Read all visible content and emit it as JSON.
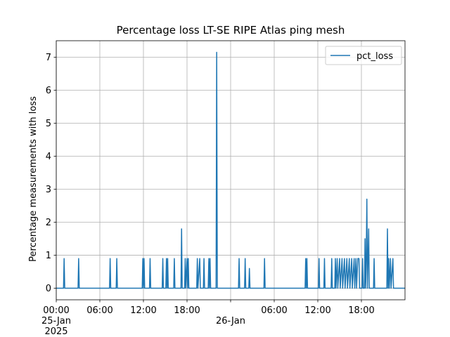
{
  "chart_data": {
    "type": "line",
    "title": "Percentage loss LT-SE RIPE Atlas ping mesh",
    "xlabel": "",
    "ylabel": "Percentage measurements with loss",
    "xlim": [
      "2025-01-25T00:00",
      "2025-01-27T00:00"
    ],
    "ylim": [
      -0.35,
      7.5
    ],
    "grid": true,
    "legend_position": "top-right",
    "line_color": "#1f77b4",
    "x_ticks": [
      {
        "at": "2025-01-25T00:00",
        "lines": [
          "00:00",
          "25-Jan",
          "2025"
        ]
      },
      {
        "at": "2025-01-25T06:00",
        "lines": [
          "06:00"
        ]
      },
      {
        "at": "2025-01-25T12:00",
        "lines": [
          "12:00"
        ]
      },
      {
        "at": "2025-01-25T18:00",
        "lines": [
          "18:00"
        ]
      },
      {
        "at": "2025-01-26T00:00",
        "lines": [
          "",
          "26-Jan"
        ]
      },
      {
        "at": "2025-01-26T06:00",
        "lines": [
          "06:00"
        ]
      },
      {
        "at": "2025-01-26T12:00",
        "lines": [
          "12:00"
        ]
      },
      {
        "at": "2025-01-26T18:00",
        "lines": [
          "18:00"
        ]
      }
    ],
    "y_ticks": [
      0,
      1,
      2,
      3,
      4,
      5,
      6,
      7
    ],
    "series": [
      {
        "name": "pct_loss",
        "points": [
          [
            "2025-01-25T00:00",
            0
          ],
          [
            "2025-01-25T01:00",
            0
          ],
          [
            "2025-01-25T01:05",
            0.9
          ],
          [
            "2025-01-25T01:10",
            0
          ],
          [
            "2025-01-25T03:00",
            0
          ],
          [
            "2025-01-25T03:05",
            0.9
          ],
          [
            "2025-01-25T03:10",
            0
          ],
          [
            "2025-01-25T07:20",
            0
          ],
          [
            "2025-01-25T07:25",
            0.9
          ],
          [
            "2025-01-25T07:30",
            0
          ],
          [
            "2025-01-25T08:15",
            0
          ],
          [
            "2025-01-25T08:20",
            0.9
          ],
          [
            "2025-01-25T08:25",
            0
          ],
          [
            "2025-01-25T11:50",
            0
          ],
          [
            "2025-01-25T11:55",
            0.9
          ],
          [
            "2025-01-25T12:00",
            0
          ],
          [
            "2025-01-25T12:05",
            0.9
          ],
          [
            "2025-01-25T12:10",
            0
          ],
          [
            "2025-01-25T12:50",
            0
          ],
          [
            "2025-01-25T12:55",
            0.9
          ],
          [
            "2025-01-25T13:00",
            0
          ],
          [
            "2025-01-25T14:35",
            0
          ],
          [
            "2025-01-25T14:40",
            0.9
          ],
          [
            "2025-01-25T14:45",
            0
          ],
          [
            "2025-01-25T15:05",
            0
          ],
          [
            "2025-01-25T15:10",
            0.9
          ],
          [
            "2025-01-25T15:15",
            0
          ],
          [
            "2025-01-25T15:20",
            0.9
          ],
          [
            "2025-01-25T15:25",
            0
          ],
          [
            "2025-01-25T16:10",
            0
          ],
          [
            "2025-01-25T16:15",
            0.9
          ],
          [
            "2025-01-25T16:20",
            0
          ],
          [
            "2025-01-25T17:10",
            0
          ],
          [
            "2025-01-25T17:15",
            1.8
          ],
          [
            "2025-01-25T17:20",
            0
          ],
          [
            "2025-01-25T17:40",
            0
          ],
          [
            "2025-01-25T17:45",
            0.9
          ],
          [
            "2025-01-25T17:50",
            0
          ],
          [
            "2025-01-25T18:00",
            0.9
          ],
          [
            "2025-01-25T18:05",
            0
          ],
          [
            "2025-01-25T18:10",
            0.9
          ],
          [
            "2025-01-25T18:15",
            0
          ],
          [
            "2025-01-25T19:20",
            0
          ],
          [
            "2025-01-25T19:25",
            0.9
          ],
          [
            "2025-01-25T19:30",
            0
          ],
          [
            "2025-01-25T19:45",
            0.9
          ],
          [
            "2025-01-25T19:50",
            0
          ],
          [
            "2025-01-25T20:15",
            0
          ],
          [
            "2025-01-25T20:20",
            0.9
          ],
          [
            "2025-01-25T20:25",
            0
          ],
          [
            "2025-01-25T20:55",
            0
          ],
          [
            "2025-01-25T21:00",
            0.9
          ],
          [
            "2025-01-25T21:05",
            0
          ],
          [
            "2025-01-25T21:10",
            0.9
          ],
          [
            "2025-01-25T21:15",
            0
          ],
          [
            "2025-01-25T22:00",
            0
          ],
          [
            "2025-01-25T22:05",
            7.15
          ],
          [
            "2025-01-25T22:10",
            0
          ],
          [
            "2025-01-26T01:05",
            0
          ],
          [
            "2025-01-26T01:10",
            0.9
          ],
          [
            "2025-01-26T01:15",
            0
          ],
          [
            "2025-01-26T01:55",
            0
          ],
          [
            "2025-01-26T02:00",
            0.9
          ],
          [
            "2025-01-26T02:05",
            0
          ],
          [
            "2025-01-26T02:30",
            0
          ],
          [
            "2025-01-26T02:35",
            0.6
          ],
          [
            "2025-01-26T02:40",
            0
          ],
          [
            "2025-01-26T04:35",
            0
          ],
          [
            "2025-01-26T04:40",
            0.9
          ],
          [
            "2025-01-26T04:45",
            0
          ],
          [
            "2025-01-26T10:15",
            0
          ],
          [
            "2025-01-26T10:20",
            0.9
          ],
          [
            "2025-01-26T10:25",
            0
          ],
          [
            "2025-01-26T10:30",
            0.9
          ],
          [
            "2025-01-26T10:35",
            0
          ],
          [
            "2025-01-26T12:05",
            0
          ],
          [
            "2025-01-26T12:10",
            0.9
          ],
          [
            "2025-01-26T12:15",
            0
          ],
          [
            "2025-01-26T12:50",
            0
          ],
          [
            "2025-01-26T12:55",
            0.9
          ],
          [
            "2025-01-26T13:00",
            0
          ],
          [
            "2025-01-26T13:50",
            0
          ],
          [
            "2025-01-26T13:55",
            0.9
          ],
          [
            "2025-01-26T14:00",
            0
          ],
          [
            "2025-01-26T14:20",
            0
          ],
          [
            "2025-01-26T14:25",
            0.9
          ],
          [
            "2025-01-26T14:30",
            0
          ],
          [
            "2025-01-26T14:40",
            0.9
          ],
          [
            "2025-01-26T14:45",
            0
          ],
          [
            "2025-01-26T15:00",
            0.9
          ],
          [
            "2025-01-26T15:05",
            0
          ],
          [
            "2025-01-26T15:20",
            0.9
          ],
          [
            "2025-01-26T15:25",
            0
          ],
          [
            "2025-01-26T15:40",
            0.9
          ],
          [
            "2025-01-26T15:45",
            0
          ],
          [
            "2025-01-26T16:00",
            0.9
          ],
          [
            "2025-01-26T16:05",
            0
          ],
          [
            "2025-01-26T16:20",
            0.9
          ],
          [
            "2025-01-26T16:25",
            0
          ],
          [
            "2025-01-26T16:40",
            0.9
          ],
          [
            "2025-01-26T16:45",
            0
          ],
          [
            "2025-01-26T17:00",
            0.9
          ],
          [
            "2025-01-26T17:05",
            0
          ],
          [
            "2025-01-26T17:15",
            0.9
          ],
          [
            "2025-01-26T17:20",
            0
          ],
          [
            "2025-01-26T17:30",
            0.9
          ],
          [
            "2025-01-26T17:40",
            0.9
          ],
          [
            "2025-01-26T17:45",
            0
          ],
          [
            "2025-01-26T18:05",
            0
          ],
          [
            "2025-01-26T18:10",
            0.9
          ],
          [
            "2025-01-26T18:15",
            0
          ],
          [
            "2025-01-26T18:25",
            0
          ],
          [
            "2025-01-26T18:30",
            1.5
          ],
          [
            "2025-01-26T18:35",
            0
          ],
          [
            "2025-01-26T18:40",
            0.9
          ],
          [
            "2025-01-26T18:45",
            2.7
          ],
          [
            "2025-01-26T18:50",
            0
          ],
          [
            "2025-01-26T19:00",
            1.8
          ],
          [
            "2025-01-26T19:05",
            0
          ],
          [
            "2025-01-26T19:40",
            0
          ],
          [
            "2025-01-26T19:45",
            0.9
          ],
          [
            "2025-01-26T19:50",
            0
          ],
          [
            "2025-01-26T21:30",
            0
          ],
          [
            "2025-01-26T21:35",
            1.8
          ],
          [
            "2025-01-26T21:40",
            0
          ],
          [
            "2025-01-26T21:45",
            0.9
          ],
          [
            "2025-01-26T21:50",
            0
          ],
          [
            "2025-01-26T22:00",
            0.9
          ],
          [
            "2025-01-26T22:05",
            0
          ],
          [
            "2025-01-26T22:20",
            0.9
          ],
          [
            "2025-01-26T22:25",
            0
          ],
          [
            "2025-01-27T00:00",
            0
          ]
        ]
      }
    ]
  }
}
